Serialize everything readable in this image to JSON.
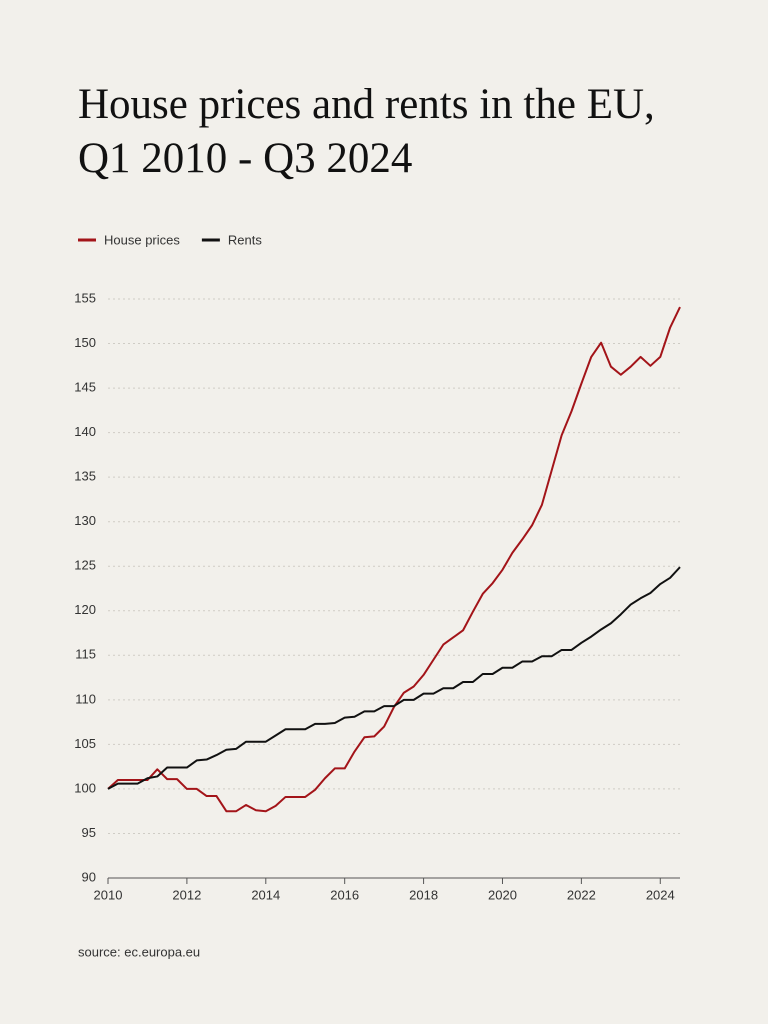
{
  "chart_data": {
    "type": "line",
    "title": "House prices and rents in the EU, Q1 2010 - Q3 2024",
    "source": "source: ec.europa.eu",
    "x": [
      2010,
      2010.25,
      2010.5,
      2010.75,
      2011,
      2011.25,
      2011.5,
      2011.75,
      2012,
      2012.25,
      2012.5,
      2012.75,
      2013,
      2013.25,
      2013.5,
      2013.75,
      2014,
      2014.25,
      2014.5,
      2014.75,
      2015,
      2015.25,
      2015.5,
      2015.75,
      2016,
      2016.25,
      2016.5,
      2016.75,
      2017,
      2017.25,
      2017.5,
      2017.75,
      2018,
      2018.25,
      2018.5,
      2018.75,
      2019,
      2019.25,
      2019.5,
      2019.75,
      2020,
      2020.25,
      2020.5,
      2020.75,
      2021,
      2021.25,
      2021.5,
      2021.75,
      2022,
      2022.25,
      2022.5,
      2022.75,
      2023,
      2023.25,
      2023.5,
      2023.75,
      2024,
      2024.25,
      2024.5
    ],
    "series": [
      {
        "name": "House prices",
        "color": "#a31419",
        "values": [
          100,
          101,
          101,
          101,
          101,
          102.2,
          101.1,
          101.1,
          100,
          100,
          99.2,
          99.2,
          97.5,
          97.5,
          98.2,
          97.6,
          97.5,
          98.1,
          99.1,
          99.1,
          99.1,
          99.9,
          101.2,
          102.3,
          102.3,
          104.2,
          105.8,
          105.9,
          107,
          109.2,
          110.8,
          111.5,
          112.8,
          114.5,
          116.2,
          117,
          117.8,
          119.9,
          121.9,
          123.1,
          124.6,
          126.5,
          128,
          129.6,
          131.9,
          135.8,
          139.7,
          142.4,
          145.5,
          148.5,
          150.1,
          147.4,
          146.5,
          147.4,
          148.5,
          147.5,
          148.5,
          151.8,
          154.1
        ]
      },
      {
        "name": "Rents",
        "color": "#111111",
        "values": [
          100,
          100.6,
          100.6,
          100.6,
          101.2,
          101.4,
          102.4,
          102.4,
          102.4,
          103.2,
          103.3,
          103.8,
          104.4,
          104.5,
          105.3,
          105.3,
          105.3,
          106,
          106.7,
          106.7,
          106.7,
          107.3,
          107.3,
          107.4,
          108,
          108.1,
          108.7,
          108.7,
          109.3,
          109.3,
          110,
          110,
          110.7,
          110.7,
          111.3,
          111.3,
          112,
          112,
          112.9,
          112.9,
          113.6,
          113.6,
          114.3,
          114.3,
          114.9,
          114.9,
          115.6,
          115.6,
          116.4,
          117.1,
          117.9,
          118.6,
          119.6,
          120.7,
          121.4,
          122,
          123,
          123.7,
          124.9
        ]
      }
    ],
    "xlim": [
      2010,
      2024.5
    ],
    "xticks": [
      2010,
      2012,
      2014,
      2016,
      2018,
      2020,
      2022,
      2024
    ],
    "ylim": [
      90,
      155
    ],
    "yticks": [
      90,
      95,
      100,
      105,
      110,
      115,
      120,
      125,
      130,
      135,
      140,
      145,
      150,
      155
    ],
    "grid": true,
    "legend": "top-left"
  }
}
